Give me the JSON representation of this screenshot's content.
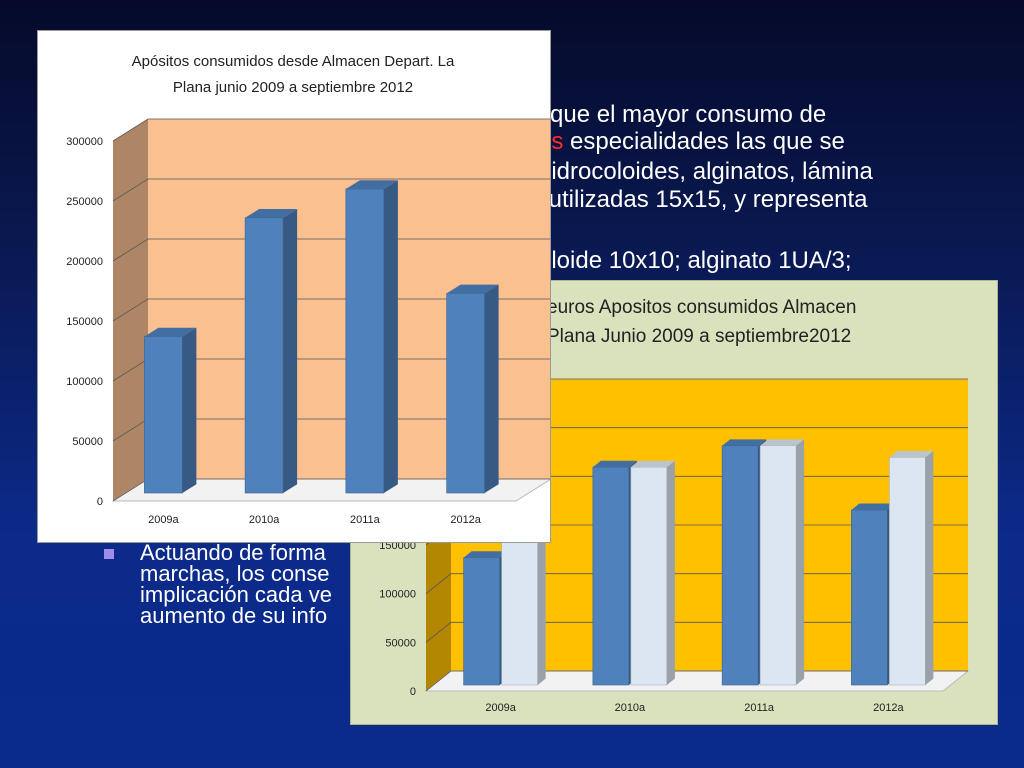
{
  "slide": {
    "text_lines": [
      {
        "pre": "a que el mayor consumo de",
        "red": "",
        "post": ""
      },
      {
        "pre": "",
        "red": "res",
        "post": " especialidades las que se"
      },
      {
        "pre": "(hidrocoloides, alginatos, lámina",
        "red": "",
        "post": ""
      },
      {
        "pre": "s utilizadas 15x15, y representa",
        "red": "",
        "post": ""
      },
      {
        "pre": "oloide 10x10; alginato 1UA/3;",
        "red": "",
        "post": ""
      }
    ],
    "bullet_lines": [
      "Actuando de forma",
      "marchas, los conse",
      "implicación cada ve",
      "aumento de su info"
    ],
    "colors": {
      "accent_red": "#ff2a2a",
      "bullet": "#9f8ee8",
      "text": "#ffffff"
    }
  },
  "chart_data": [
    {
      "type": "bar",
      "title_lines": [
        "Apósitos consumidos desde Almacen Depart. La",
        "Plana junio 2009 a septiembre 2012"
      ],
      "categories": [
        "2009a",
        "2010a",
        "2011a",
        "2012a"
      ],
      "series": [
        {
          "values": [
            137000,
            236000,
            260000,
            173000
          ],
          "color": "#4f81bd"
        }
      ],
      "ylim": [
        0,
        300000
      ],
      "yticks": [
        "0",
        "50000",
        "100000",
        "150000",
        "200000",
        "250000",
        "300000"
      ],
      "grid": true,
      "plot_color": "#fac090"
    },
    {
      "type": "bar",
      "title_lines": [
        "euros Apositos consumidos Almacen",
        "Plana Junio 2009 a septiembre2012"
      ],
      "categories": [
        "2009a",
        "2010a",
        "2011a",
        "2012a"
      ],
      "series": [
        {
          "values": [
            137000,
            230000,
            252000,
            186000
          ],
          "color": "#4f81bd"
        },
        {
          "values": [
            185000,
            230000,
            252000,
            240000
          ],
          "color": "#dce6f2"
        }
      ],
      "ylim": [
        0,
        300000
      ],
      "yticks": [
        "0",
        "50000",
        "100000",
        "150000"
      ],
      "grid": true,
      "plot_color": "#ffc000"
    }
  ]
}
